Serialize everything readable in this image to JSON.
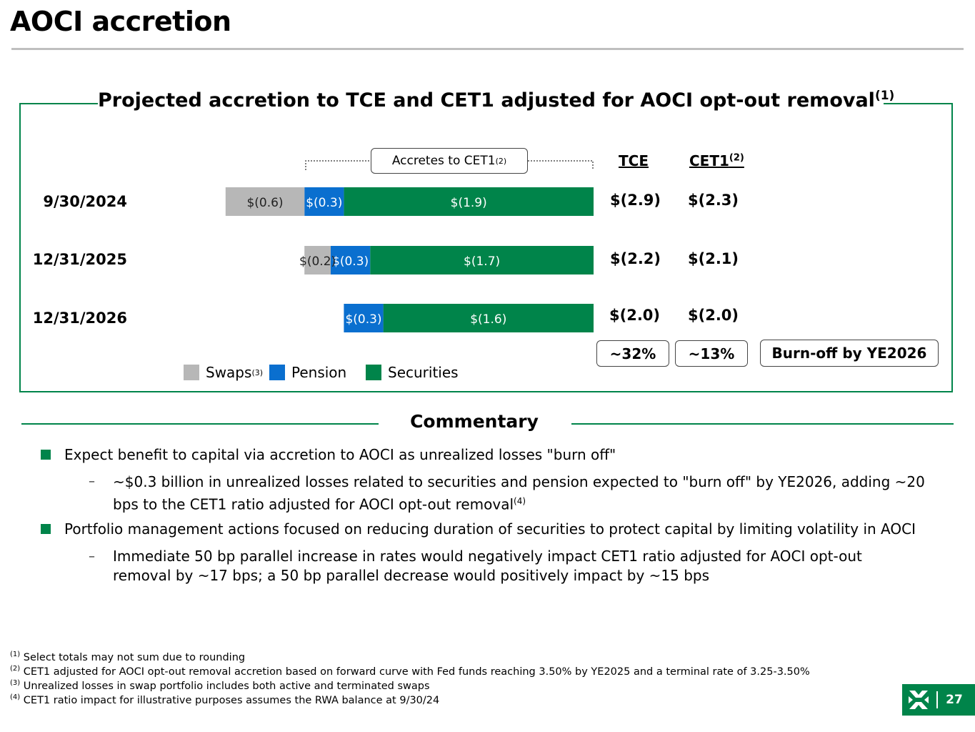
{
  "header": {
    "title": "AOCI accretion"
  },
  "chart_data": {
    "type": "bar",
    "orientation": "horizontal-stacked",
    "title": "Projected accretion to TCE and CET1 adjusted for AOCI opt-out removal",
    "title_sup": "(1)",
    "categories": [
      "9/30/2024",
      "12/31/2025",
      "12/31/2026"
    ],
    "series": [
      {
        "name": "Swaps",
        "sup": "(3)",
        "color": "#b7b7b7",
        "values": [
          -0.6,
          -0.2,
          0
        ],
        "labels": [
          "$(0.6)",
          "$(0.2)",
          ""
        ]
      },
      {
        "name": "Pension",
        "sup": "",
        "color": "#0a6fcf",
        "values": [
          -0.3,
          -0.3,
          -0.3
        ],
        "labels": [
          "$(0.3)",
          "$(0.3)",
          "$(0.3)"
        ]
      },
      {
        "name": "Securities",
        "sup": "",
        "color": "#00844a",
        "values": [
          -1.9,
          -1.7,
          -1.6
        ],
        "labels": [
          "$(1.9)",
          "$(1.7)",
          "$(1.6)"
        ]
      }
    ],
    "accretes_label": "Accretes to CET1",
    "accretes_sup": "(2)",
    "tce_header": "TCE",
    "cet1_header": "CET1",
    "cet1_sup": "(2)",
    "tce_totals": [
      "$(2.9)",
      "$(2.2)",
      "$(2.0)"
    ],
    "cet1_totals": [
      "$(2.3)",
      "$(2.1)",
      "$(2.0)"
    ],
    "tce_change": "~32%",
    "cet1_change": "~13%",
    "burnoff_label": "Burn-off by YE2026"
  },
  "commentary": {
    "title": "Commentary",
    "b1": "Expect benefit to capital via accretion to AOCI as unrealized losses \"burn off\"",
    "b1_sub": "~$0.3 billion in unrealized losses related to securities and pension expected to \"burn off\" by YE2026, adding ~20 bps to the CET1 ratio adjusted for AOCI opt-out removal",
    "b1_sub_sup": "(4)",
    "b2": "Portfolio management actions focused on reducing duration of securities to protect capital by limiting volatility in AOCI",
    "b2_sub": "Immediate 50 bp parallel increase in rates would negatively impact CET1 ratio adjusted for AOCI opt-out removal by ~17 bps; a 50 bp parallel decrease would positively impact by ~15 bps",
    "dash": "–"
  },
  "footnotes": [
    {
      "sup": "(1)",
      "text": "Select totals may not sum due to rounding"
    },
    {
      "sup": "(2)",
      "text": "CET1 adjusted for AOCI opt-out removal accretion based on forward curve with Fed funds reaching 3.50% by YE2025 and a terminal rate of 3.25-3.50%"
    },
    {
      "sup": "(3)",
      "text": "Unrealized losses in swap portfolio includes both active and terminated swaps"
    },
    {
      "sup": "(4)",
      "text": "CET1 ratio impact for illustrative purposes assumes the RWA balance at 9/30/24"
    }
  ],
  "page": {
    "number": "27",
    "logo_icon": "citizens-logo-icon"
  }
}
